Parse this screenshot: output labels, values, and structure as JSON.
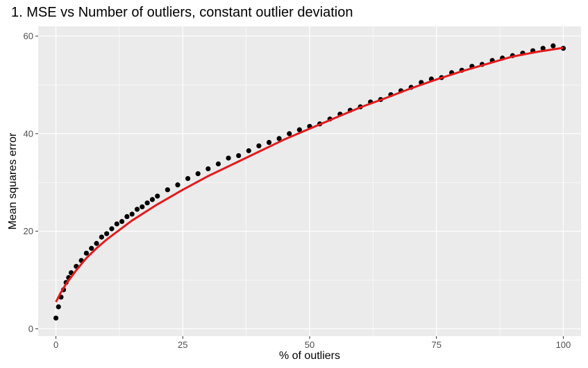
{
  "chart_data": {
    "type": "scatter",
    "title": "1. MSE vs Number of outliers, constant outlier deviation",
    "xlabel": "% of outliers",
    "ylabel": "Mean squares error",
    "xlim": [
      -3.5,
      103.5
    ],
    "ylim": [
      -1.5,
      62
    ],
    "x_ticks": [
      0,
      25,
      50,
      75,
      100
    ],
    "x_tick_labels": [
      "0",
      "25",
      "50",
      "75",
      "100"
    ],
    "y_ticks": [
      0,
      20,
      40,
      60
    ],
    "y_tick_labels": [
      "0",
      "20",
      "40",
      "60"
    ],
    "grid": true,
    "background": "#ebebeb",
    "grid_color": "#ffffff",
    "point_color": "#000000",
    "trend_color": "#e31a1c",
    "series": [
      {
        "kind": "points",
        "x": [
          0,
          0.5,
          1,
          1.5,
          2,
          2.5,
          3,
          4,
          5,
          6,
          7,
          8,
          9,
          10,
          11,
          12,
          13,
          14,
          15,
          16,
          17,
          18,
          19,
          20,
          22,
          24,
          26,
          28,
          30,
          32,
          34,
          36,
          38,
          40,
          42,
          44,
          46,
          48,
          50,
          52,
          54,
          56,
          58,
          60,
          62,
          64,
          66,
          68,
          70,
          72,
          74,
          76,
          78,
          80,
          82,
          84,
          86,
          88,
          90,
          92,
          94,
          96,
          98,
          100
        ],
        "y": [
          2.2,
          4.5,
          6.5,
          8.0,
          9.5,
          10.5,
          11.5,
          12.8,
          14.0,
          15.5,
          16.5,
          17.5,
          18.8,
          19.5,
          20.5,
          21.5,
          22.0,
          23.0,
          23.5,
          24.5,
          25.0,
          25.8,
          26.5,
          27.2,
          28.5,
          29.5,
          30.8,
          31.8,
          32.8,
          33.8,
          35.0,
          35.5,
          36.5,
          37.5,
          38.2,
          39.0,
          40.0,
          40.8,
          41.5,
          42.0,
          43.0,
          44.0,
          44.8,
          45.5,
          46.5,
          47.0,
          48.0,
          48.8,
          49.5,
          50.5,
          51.2,
          51.5,
          52.5,
          53.0,
          53.8,
          54.2,
          55.0,
          55.5,
          56.0,
          56.5,
          57.0,
          57.5,
          58.0,
          57.5
        ]
      },
      {
        "kind": "trend",
        "x": [
          0,
          1,
          2,
          4,
          6,
          8,
          10,
          15,
          20,
          25,
          30,
          35,
          40,
          45,
          50,
          55,
          60,
          65,
          70,
          75,
          80,
          85,
          90,
          95,
          100
        ],
        "y": [
          5.5,
          7.5,
          9.2,
          12.0,
          14.5,
          16.5,
          18.3,
          22.2,
          25.5,
          28.5,
          31.3,
          33.8,
          36.3,
          38.8,
          41.0,
          43.2,
          45.4,
          47.3,
          49.3,
          51.1,
          52.8,
          54.3,
          55.8,
          56.8,
          57.6
        ]
      }
    ]
  }
}
